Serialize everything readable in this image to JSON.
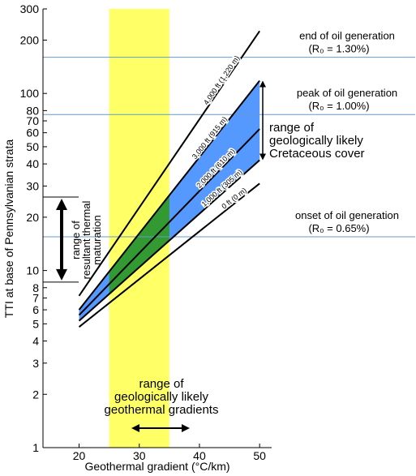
{
  "chart_data": {
    "type": "line",
    "xlabel": "Geothermal gradient (°C/km)",
    "ylabel": "TTI at base of Pennsylvanian strata",
    "xlim": [
      14,
      52
    ],
    "ylim": [
      1,
      300
    ],
    "yscale": "log",
    "x_ticks": [
      "20",
      "30",
      "40",
      "50"
    ],
    "y_ticks": [
      {
        "value": 1,
        "label": "1"
      },
      {
        "value": 2,
        "label": "2"
      },
      {
        "value": 3,
        "label": "3"
      },
      {
        "value": 4,
        "label": "4"
      },
      {
        "value": 5,
        "label": "5"
      },
      {
        "value": 6,
        "label": "6"
      },
      {
        "value": 7,
        "label": "7"
      },
      {
        "value": 8,
        "label": "8"
      },
      {
        "value": 10,
        "label": "10"
      },
      {
        "value": 20,
        "label": "20"
      },
      {
        "value": 30,
        "label": "30"
      },
      {
        "value": 40,
        "label": "40"
      },
      {
        "value": 50,
        "label": "50"
      },
      {
        "value": 60,
        "label": "60"
      },
      {
        "value": 70,
        "label": "70"
      },
      {
        "value": 80,
        "label": "80"
      },
      {
        "value": 100,
        "label": "100"
      },
      {
        "value": 200,
        "label": "200"
      },
      {
        "value": 300,
        "label": "300"
      }
    ],
    "series": [
      {
        "name": "4,000 ft (1,220 m)",
        "x": [
          20,
          50
        ],
        "y": [
          7.2,
          225
        ]
      },
      {
        "name": "3,000 ft (915 m)",
        "x": [
          20,
          50
        ],
        "y": [
          6.0,
          118
        ]
      },
      {
        "name": "2,000 ft (610 m)",
        "x": [
          20,
          50
        ],
        "y": [
          5.6,
          63
        ]
      },
      {
        "name": "1,000 ft (305 m)",
        "x": [
          20,
          50
        ],
        "y": [
          5.2,
          42
        ]
      },
      {
        "name": "0 ft (0 m)",
        "x": [
          20,
          50
        ],
        "y": [
          4.8,
          31
        ]
      }
    ],
    "reference_lines": [
      {
        "y": 160,
        "label": "end of oil generation",
        "sublabel": "(R₀ = 1.30%)"
      },
      {
        "y": 76,
        "label": "peak of oil generation",
        "sublabel": "(R₀ = 1.00%)"
      },
      {
        "y": 15.5,
        "label": "onset of oil generation",
        "sublabel": "(R₀ = 0.65%)"
      }
    ],
    "x_band": {
      "from": 25,
      "to": 35,
      "label_lines": [
        "range of",
        "geologically likely",
        "geothermal gradients"
      ]
    },
    "cretaceous_label": [
      "range of",
      "geologically likely",
      "Cretaceous cover"
    ],
    "thermal_maturation_range": {
      "from": 8.6,
      "to": 26,
      "label_lines": [
        "range of",
        "resultant thermal",
        "maturation"
      ]
    },
    "colors": {
      "band": "#ffff66",
      "shaded_cover": "#5599ff",
      "overlap": "#339933",
      "reference": "#6699cc",
      "line": "#000000"
    }
  }
}
